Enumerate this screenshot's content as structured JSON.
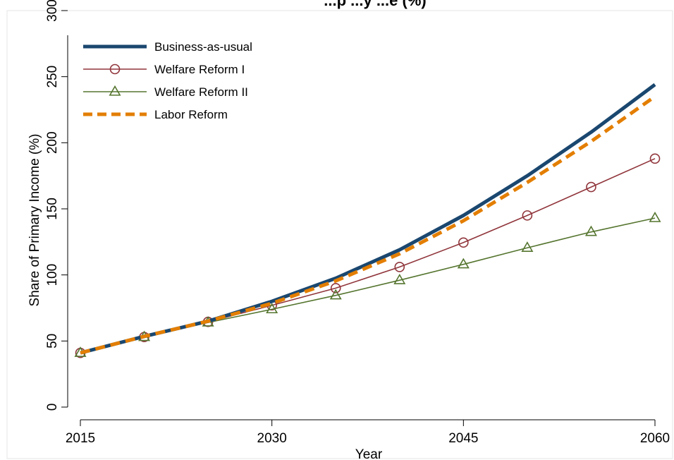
{
  "chart_data": {
    "type": "line",
    "title": "...p ...y ...e (%)",
    "xlabel": "Year",
    "ylabel": "Share of Primary Income (%)",
    "xlim": [
      2015,
      2060
    ],
    "ylim": [
      0,
      300
    ],
    "xticks": [
      2015,
      2030,
      2045,
      2060
    ],
    "yticks": [
      0,
      50,
      100,
      150,
      200,
      250,
      300
    ],
    "grid": false,
    "legend_position": "top-left",
    "x": [
      2015,
      2020,
      2025,
      2030,
      2035,
      2040,
      2045,
      2050,
      2055,
      2060
    ],
    "series": [
      {
        "name": "Business-as-usual",
        "color": "#1a476f",
        "style": "solid-thick",
        "marker": "none",
        "values": [
          41,
          53.5,
          65,
          80,
          97.5,
          119,
          145,
          175,
          208,
          244
        ]
      },
      {
        "name": "Welfare Reform I",
        "color": "#90353b",
        "style": "solid-thin",
        "marker": "circle",
        "values": [
          41,
          53,
          64.5,
          77,
          90,
          106,
          124.5,
          145,
          166.5,
          188
        ]
      },
      {
        "name": "Welfare Reform II",
        "color": "#55752f",
        "style": "solid-thin",
        "marker": "triangle",
        "values": [
          41,
          53,
          64,
          74,
          84.5,
          96,
          108,
          120.5,
          132.5,
          143
        ]
      },
      {
        "name": "Labor Reform",
        "color": "#e37e00",
        "style": "dashed-thick",
        "marker": "none",
        "values": [
          41,
          53.5,
          65,
          78.5,
          95.5,
          116,
          141,
          170,
          201,
          235
        ]
      }
    ]
  }
}
